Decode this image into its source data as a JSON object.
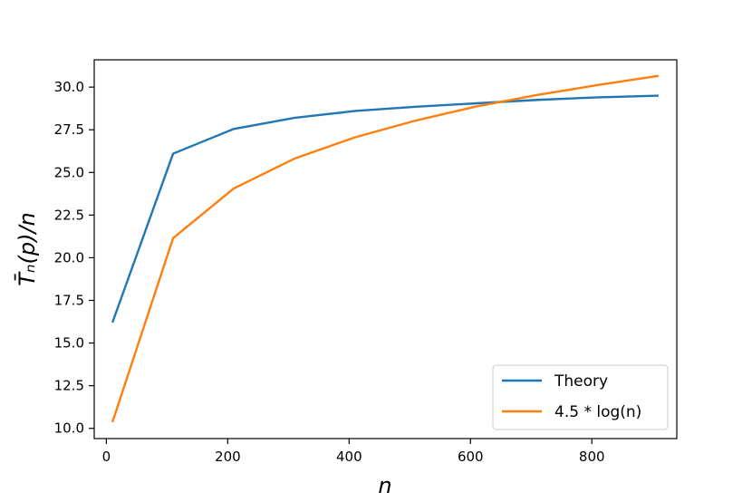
{
  "chart_data": {
    "type": "line",
    "xlabel": "n",
    "ylabel": "T̄ₙ(p)/n",
    "xlim": [
      -20,
      940
    ],
    "ylim": [
      9.4,
      31.6
    ],
    "xticks": [
      0,
      200,
      400,
      600,
      800
    ],
    "xtick_labels": [
      "0",
      "200",
      "400",
      "600",
      "800"
    ],
    "yticks": [
      10.0,
      12.5,
      15.0,
      17.5,
      20.0,
      22.5,
      25.0,
      27.5,
      30.0
    ],
    "ytick_labels": [
      "10.0",
      "12.5",
      "15.0",
      "17.5",
      "20.0",
      "22.5",
      "25.0",
      "27.5",
      "30.0"
    ],
    "grid": false,
    "legend_position": "lower-right",
    "x": [
      10,
      110,
      210,
      310,
      410,
      510,
      610,
      710,
      810,
      910
    ],
    "series": [
      {
        "name": "Theory",
        "color": "#1f77b4",
        "values": [
          16.2,
          26.1,
          27.55,
          28.2,
          28.6,
          28.85,
          29.05,
          29.25,
          29.4,
          29.5
        ]
      },
      {
        "name": "4.5 * log(n)",
        "color": "#ff7f0e",
        "values": [
          10.36,
          21.15,
          24.06,
          25.81,
          27.06,
          28.04,
          28.87,
          29.54,
          30.12,
          30.66
        ]
      }
    ]
  }
}
